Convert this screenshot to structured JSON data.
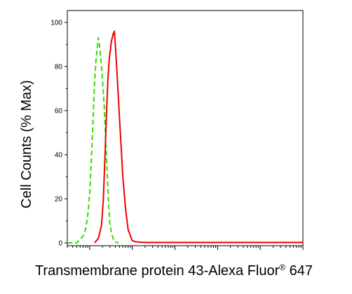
{
  "chart_data": {
    "type": "line",
    "title": "",
    "xlabel": "Transmembrane protein 43-Alexa Fluor",
    "xlabel_sup": "®",
    "xlabel_suffix": " 647",
    "ylabel": "Cell Counts (% Max)",
    "xscale": "log",
    "xlim": [
      0.3,
      100000
    ],
    "ylim": [
      0,
      100
    ],
    "yticks": [
      0,
      20,
      40,
      60,
      80,
      100
    ],
    "grid": false,
    "legend": "none",
    "series": [
      {
        "color": "#33dd00",
        "dash": "dashed",
        "x": [
          0.3,
          0.5,
          0.7,
          0.8,
          0.9,
          1.0,
          1.1,
          1.2,
          1.3,
          1.4,
          1.5,
          1.6,
          1.7,
          1.8,
          1.9,
          2.0,
          2.2,
          2.4,
          2.6,
          2.8,
          3.0,
          3.3,
          3.7,
          4.2,
          4.8
        ],
        "y": [
          0,
          0,
          3,
          6,
          12,
          22,
          38,
          55,
          72,
          82,
          88,
          93,
          90,
          85,
          80,
          74,
          62,
          45,
          30,
          17,
          8,
          4,
          1,
          0.3,
          0
        ]
      },
      {
        "color": "#ee0000",
        "dash": "solid",
        "x": [
          1.3,
          1.6,
          1.9,
          2.1,
          2.3,
          2.5,
          2.7,
          2.9,
          3.1,
          3.2,
          3.4,
          3.6,
          3.8,
          4.0,
          4.3,
          4.6,
          5.0,
          5.5,
          6.0,
          7.0,
          8.0,
          10,
          12,
          15,
          20,
          30,
          100000
        ],
        "y": [
          0,
          2,
          8,
          20,
          40,
          60,
          75,
          84,
          88,
          91,
          93,
          95,
          96,
          90,
          80,
          70,
          57,
          43,
          30,
          15,
          6,
          1,
          0.5,
          0.3,
          0.2,
          0.2,
          0.2
        ]
      }
    ]
  }
}
